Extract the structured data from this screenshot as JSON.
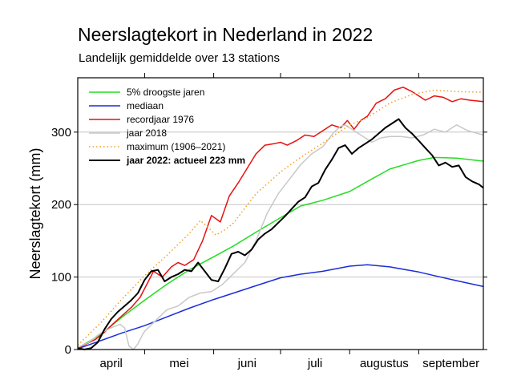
{
  "header": {
    "title": "Neerslagtekort in Nederland in 2022",
    "subtitle": "Landelijk gemiddelde over 13 stations"
  },
  "chart_data": {
    "type": "line",
    "title": "Neerslagtekort in Nederland in 2022",
    "subtitle": "Landelijk gemiddelde over 13 stations",
    "xlabel": "",
    "ylabel": "Neerslagtekort (mm)",
    "x_unit": "dag vanaf 1 april",
    "xlim": [
      0,
      182
    ],
    "ylim": [
      0,
      375
    ],
    "yticks": [
      0,
      100,
      200,
      300
    ],
    "grid": true,
    "legend_position": "top-left",
    "months": [
      {
        "label": "april",
        "start": 0,
        "end": 30
      },
      {
        "label": "mei",
        "start": 30,
        "end": 61
      },
      {
        "label": "juni",
        "start": 61,
        "end": 91
      },
      {
        "label": "juli",
        "start": 91,
        "end": 122
      },
      {
        "label": "augustus",
        "start": 122,
        "end": 153
      },
      {
        "label": "september",
        "start": 153,
        "end": 182
      }
    ],
    "series": [
      {
        "name": "5% droogste jaren",
        "color": "#22dd22",
        "dash": "solid",
        "bold": false,
        "x": [
          0,
          10,
          20,
          30,
          40,
          50,
          61,
          70,
          80,
          91,
          100,
          110,
          122,
          130,
          140,
          153,
          160,
          170,
          182
        ],
        "y": [
          2,
          20,
          45,
          68,
          90,
          110,
          128,
          143,
          162,
          182,
          198,
          206,
          218,
          232,
          249,
          261,
          265,
          264,
          260
        ]
      },
      {
        "name": "mediaan",
        "color": "#1a2ed8",
        "dash": "solid",
        "bold": false,
        "x": [
          0,
          10,
          20,
          30,
          40,
          50,
          61,
          70,
          80,
          91,
          100,
          110,
          122,
          130,
          140,
          153,
          160,
          170,
          182
        ],
        "y": [
          1,
          12,
          23,
          33,
          45,
          57,
          69,
          78,
          88,
          99,
          104,
          108,
          115,
          117,
          114,
          107,
          102,
          95,
          87
        ]
      },
      {
        "name": "recordjaar 1976",
        "color": "#e8110f",
        "dash": "solid",
        "bold": false,
        "x": [
          0,
          4,
          8,
          12,
          16,
          20,
          24,
          28,
          31,
          34,
          38,
          42,
          45,
          48,
          52,
          56,
          60,
          64,
          68,
          72,
          76,
          80,
          84,
          88,
          91,
          94,
          98,
          102,
          106,
          110,
          114,
          118,
          121,
          124,
          127,
          130,
          134,
          138,
          142,
          146,
          150,
          153,
          156,
          160,
          164,
          168,
          172,
          176,
          182
        ],
        "y": [
          2,
          8,
          14,
          24,
          36,
          47,
          58,
          72,
          90,
          108,
          100,
          114,
          120,
          116,
          124,
          150,
          185,
          176,
          212,
          230,
          250,
          270,
          282,
          284,
          286,
          282,
          288,
          296,
          294,
          302,
          310,
          306,
          316,
          304,
          316,
          322,
          340,
          346,
          358,
          362,
          356,
          350,
          344,
          350,
          348,
          342,
          346,
          344,
          342
        ]
      },
      {
        "name": "jaar 2018",
        "color": "#c8c8c8",
        "dash": "solid",
        "bold": false,
        "x": [
          0,
          5,
          10,
          15,
          19,
          21,
          23,
          25,
          27,
          29,
          30,
          35,
          40,
          45,
          50,
          55,
          60,
          65,
          70,
          75,
          80,
          85,
          90,
          95,
          100,
          105,
          110,
          115,
          118,
          120,
          124,
          128,
          132,
          136,
          140,
          145,
          150,
          155,
          160,
          165,
          170,
          175,
          182
        ],
        "y": [
          3,
          10,
          22,
          30,
          35,
          30,
          5,
          0,
          8,
          20,
          25,
          40,
          55,
          60,
          72,
          78,
          80,
          90,
          105,
          120,
          150,
          188,
          215,
          235,
          255,
          270,
          280,
          300,
          308,
          310,
          302,
          294,
          286,
          292,
          294,
          294,
          292,
          296,
          304,
          300,
          310,
          302,
          296
        ]
      },
      {
        "name": "maximum (1906–2021)",
        "color": "#f0a020",
        "dash": "dotted",
        "bold": false,
        "x": [
          0,
          10,
          20,
          30,
          40,
          50,
          55,
          58,
          62,
          66,
          70,
          80,
          91,
          100,
          110,
          122,
          130,
          140,
          150,
          160,
          170,
          182
        ],
        "y": [
          6,
          36,
          70,
          102,
          130,
          160,
          178,
          170,
          158,
          165,
          175,
          215,
          245,
          265,
          285,
          310,
          320,
          340,
          352,
          358,
          356,
          355
        ]
      },
      {
        "name": "jaar 2022: actueel 223 mm",
        "color": "#000000",
        "dash": "solid",
        "bold": true,
        "x": [
          0,
          3,
          6,
          9,
          12,
          15,
          18,
          21,
          24,
          27,
          30,
          33,
          36,
          39,
          42,
          45,
          48,
          51,
          54,
          57,
          60,
          63,
          66,
          69,
          72,
          75,
          78,
          81,
          84,
          87,
          90,
          93,
          96,
          99,
          102,
          105,
          108,
          111,
          114,
          117,
          120,
          123,
          126,
          129,
          132,
          135,
          138,
          141,
          144,
          147,
          150,
          153,
          156,
          159,
          162,
          165,
          168,
          171,
          174,
          177,
          180,
          182
        ],
        "y": [
          2,
          0,
          2,
          10,
          28,
          42,
          52,
          60,
          68,
          78,
          96,
          108,
          110,
          94,
          100,
          104,
          110,
          108,
          120,
          108,
          96,
          94,
          112,
          132,
          135,
          130,
          138,
          152,
          160,
          166,
          175,
          184,
          194,
          204,
          210,
          225,
          230,
          248,
          262,
          278,
          282,
          270,
          278,
          284,
          290,
          298,
          306,
          312,
          318,
          306,
          298,
          288,
          278,
          268,
          254,
          258,
          252,
          254,
          238,
          232,
          228,
          223
        ]
      }
    ]
  }
}
